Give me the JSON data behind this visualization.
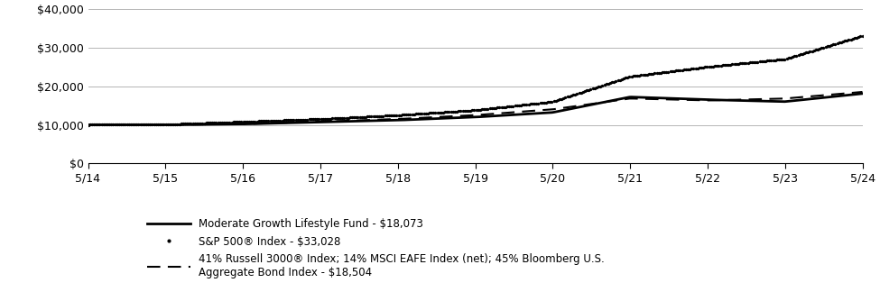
{
  "x_labels": [
    "5/14",
    "5/15",
    "5/16",
    "5/17",
    "5/18",
    "5/19",
    "5/20",
    "5/21",
    "5/22",
    "5/23",
    "5/24"
  ],
  "x_positions": [
    0,
    1,
    2,
    3,
    4,
    5,
    6,
    7,
    8,
    9,
    10
  ],
  "fund_values": [
    10000,
    10000,
    10200,
    10700,
    11200,
    12000,
    13200,
    17200,
    16500,
    16000,
    18073
  ],
  "sp500_values": [
    10000,
    10100,
    10800,
    11500,
    12500,
    13800,
    16000,
    22500,
    25000,
    27000,
    33028
  ],
  "blend_values": [
    10000,
    10000,
    10200,
    10800,
    11500,
    12500,
    14000,
    16800,
    16300,
    16800,
    18504
  ],
  "ylim": [
    0,
    40000
  ],
  "yticks": [
    0,
    10000,
    20000,
    30000,
    40000
  ],
  "ytick_labels": [
    "$0",
    "$10,000",
    "$20,000",
    "$30,000",
    "$40,000"
  ],
  "legend_labels": [
    "Moderate Growth Lifestyle Fund - $18,073",
    "S&P 500® Index - $33,028",
    "41% Russell 3000® Index; 14% MSCI EAFE Index (net); 45% Bloomberg U.S.\nAggregate Bond Index - $18,504"
  ],
  "background_color": "#ffffff",
  "figure_width": 9.75,
  "figure_height": 3.24,
  "dpi": 100
}
